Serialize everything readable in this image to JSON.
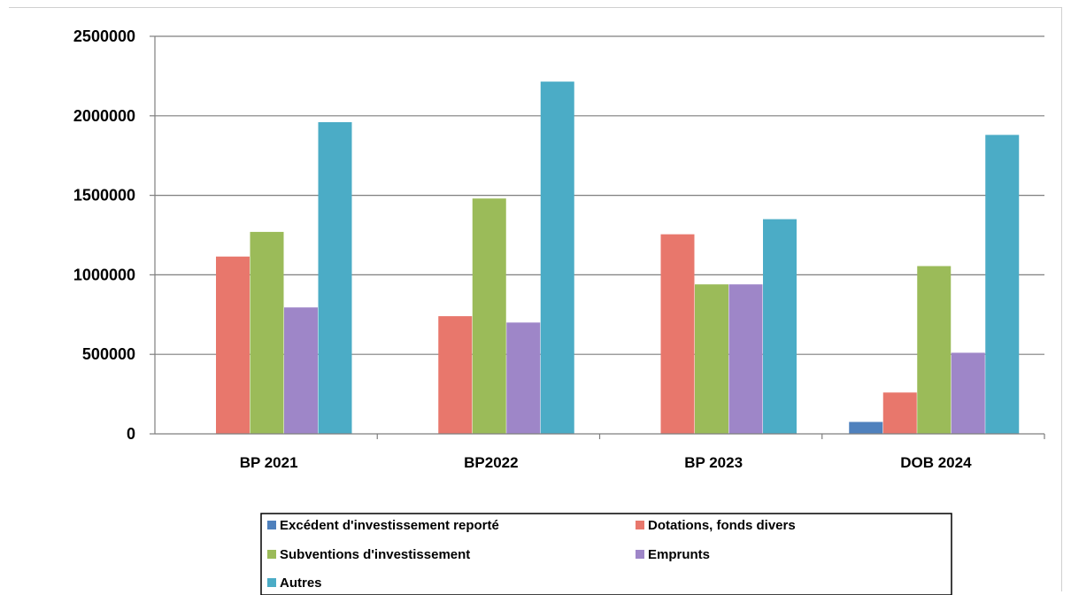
{
  "chart_data": {
    "type": "bar",
    "categories": [
      "BP 2021",
      "BP2022",
      "BP 2023",
      "DOB 2024"
    ],
    "series": [
      {
        "name": "Excédent d'investissement reporté",
        "color": "#4f81bd",
        "values": [
          0,
          0,
          0,
          75000
        ]
      },
      {
        "name": "Dotations, fonds divers",
        "color": "#e8776c",
        "values": [
          1115000,
          740000,
          1255000,
          260000
        ]
      },
      {
        "name": "Subventions d'investissement",
        "color": "#9bbb59",
        "values": [
          1270000,
          1480000,
          940000,
          1055000
        ]
      },
      {
        "name": "Emprunts",
        "color": "#9e86c8",
        "values": [
          795000,
          700000,
          940000,
          510000
        ]
      },
      {
        "name": "Autres",
        "color": "#4bacc6",
        "values": [
          1960000,
          2215000,
          1350000,
          1880000
        ]
      }
    ],
    "y_ticks": [
      "0",
      "500000",
      "1000000",
      "1500000",
      "2000000",
      "2500000"
    ],
    "ylim": [
      0,
      2500000
    ],
    "grid": true,
    "legend_position": "bottom"
  }
}
